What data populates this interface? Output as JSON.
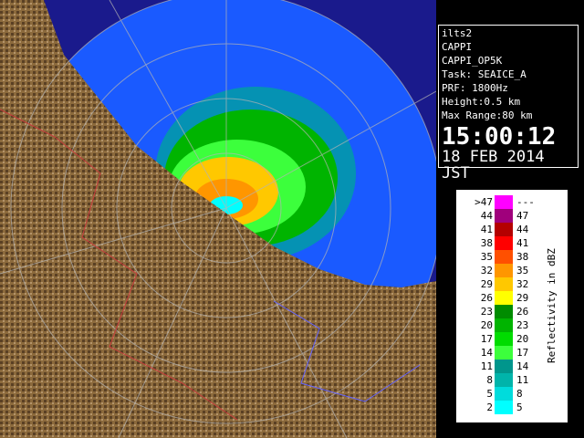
{
  "info": {
    "lines": [
      "ilts2",
      "CAPPI",
      "CAPPI_OP5K",
      "Task: SEAICE_A",
      "PRF: 1800Hz",
      "Height:0.5 km",
      "Max Range:80 km"
    ],
    "time": "15:00:12",
    "date": "18 FEB 2014 JST"
  },
  "legend": {
    "label": "Reflectivity in dBZ",
    "rows": [
      {
        "low": ">47",
        "high": "---",
        "color": "#ff00ff"
      },
      {
        "low": "44",
        "high": "47",
        "color": "#a0007c"
      },
      {
        "low": "41",
        "high": "44",
        "color": "#b40000"
      },
      {
        "low": "38",
        "high": "41",
        "color": "#ff0000"
      },
      {
        "low": "35",
        "high": "38",
        "color": "#ff5000"
      },
      {
        "low": "32",
        "high": "35",
        "color": "#ff9600"
      },
      {
        "low": "29",
        "high": "32",
        "color": "#ffc800"
      },
      {
        "low": "26",
        "high": "29",
        "color": "#ffff00"
      },
      {
        "low": "23",
        "high": "26",
        "color": "#008c00"
      },
      {
        "low": "20",
        "high": "23",
        "color": "#00b400"
      },
      {
        "low": "17",
        "high": "20",
        "color": "#00dc00"
      },
      {
        "low": "14",
        "high": "17",
        "color": "#3cff3c"
      },
      {
        "low": "11",
        "high": "14",
        "color": "#00968c"
      },
      {
        "low": "8",
        "high": "11",
        "color": "#00b4aa"
      },
      {
        "low": "5",
        "high": "8",
        "color": "#00dcdc"
      },
      {
        "low": "2",
        "high": "5",
        "color": "#00ffff"
      }
    ]
  }
}
